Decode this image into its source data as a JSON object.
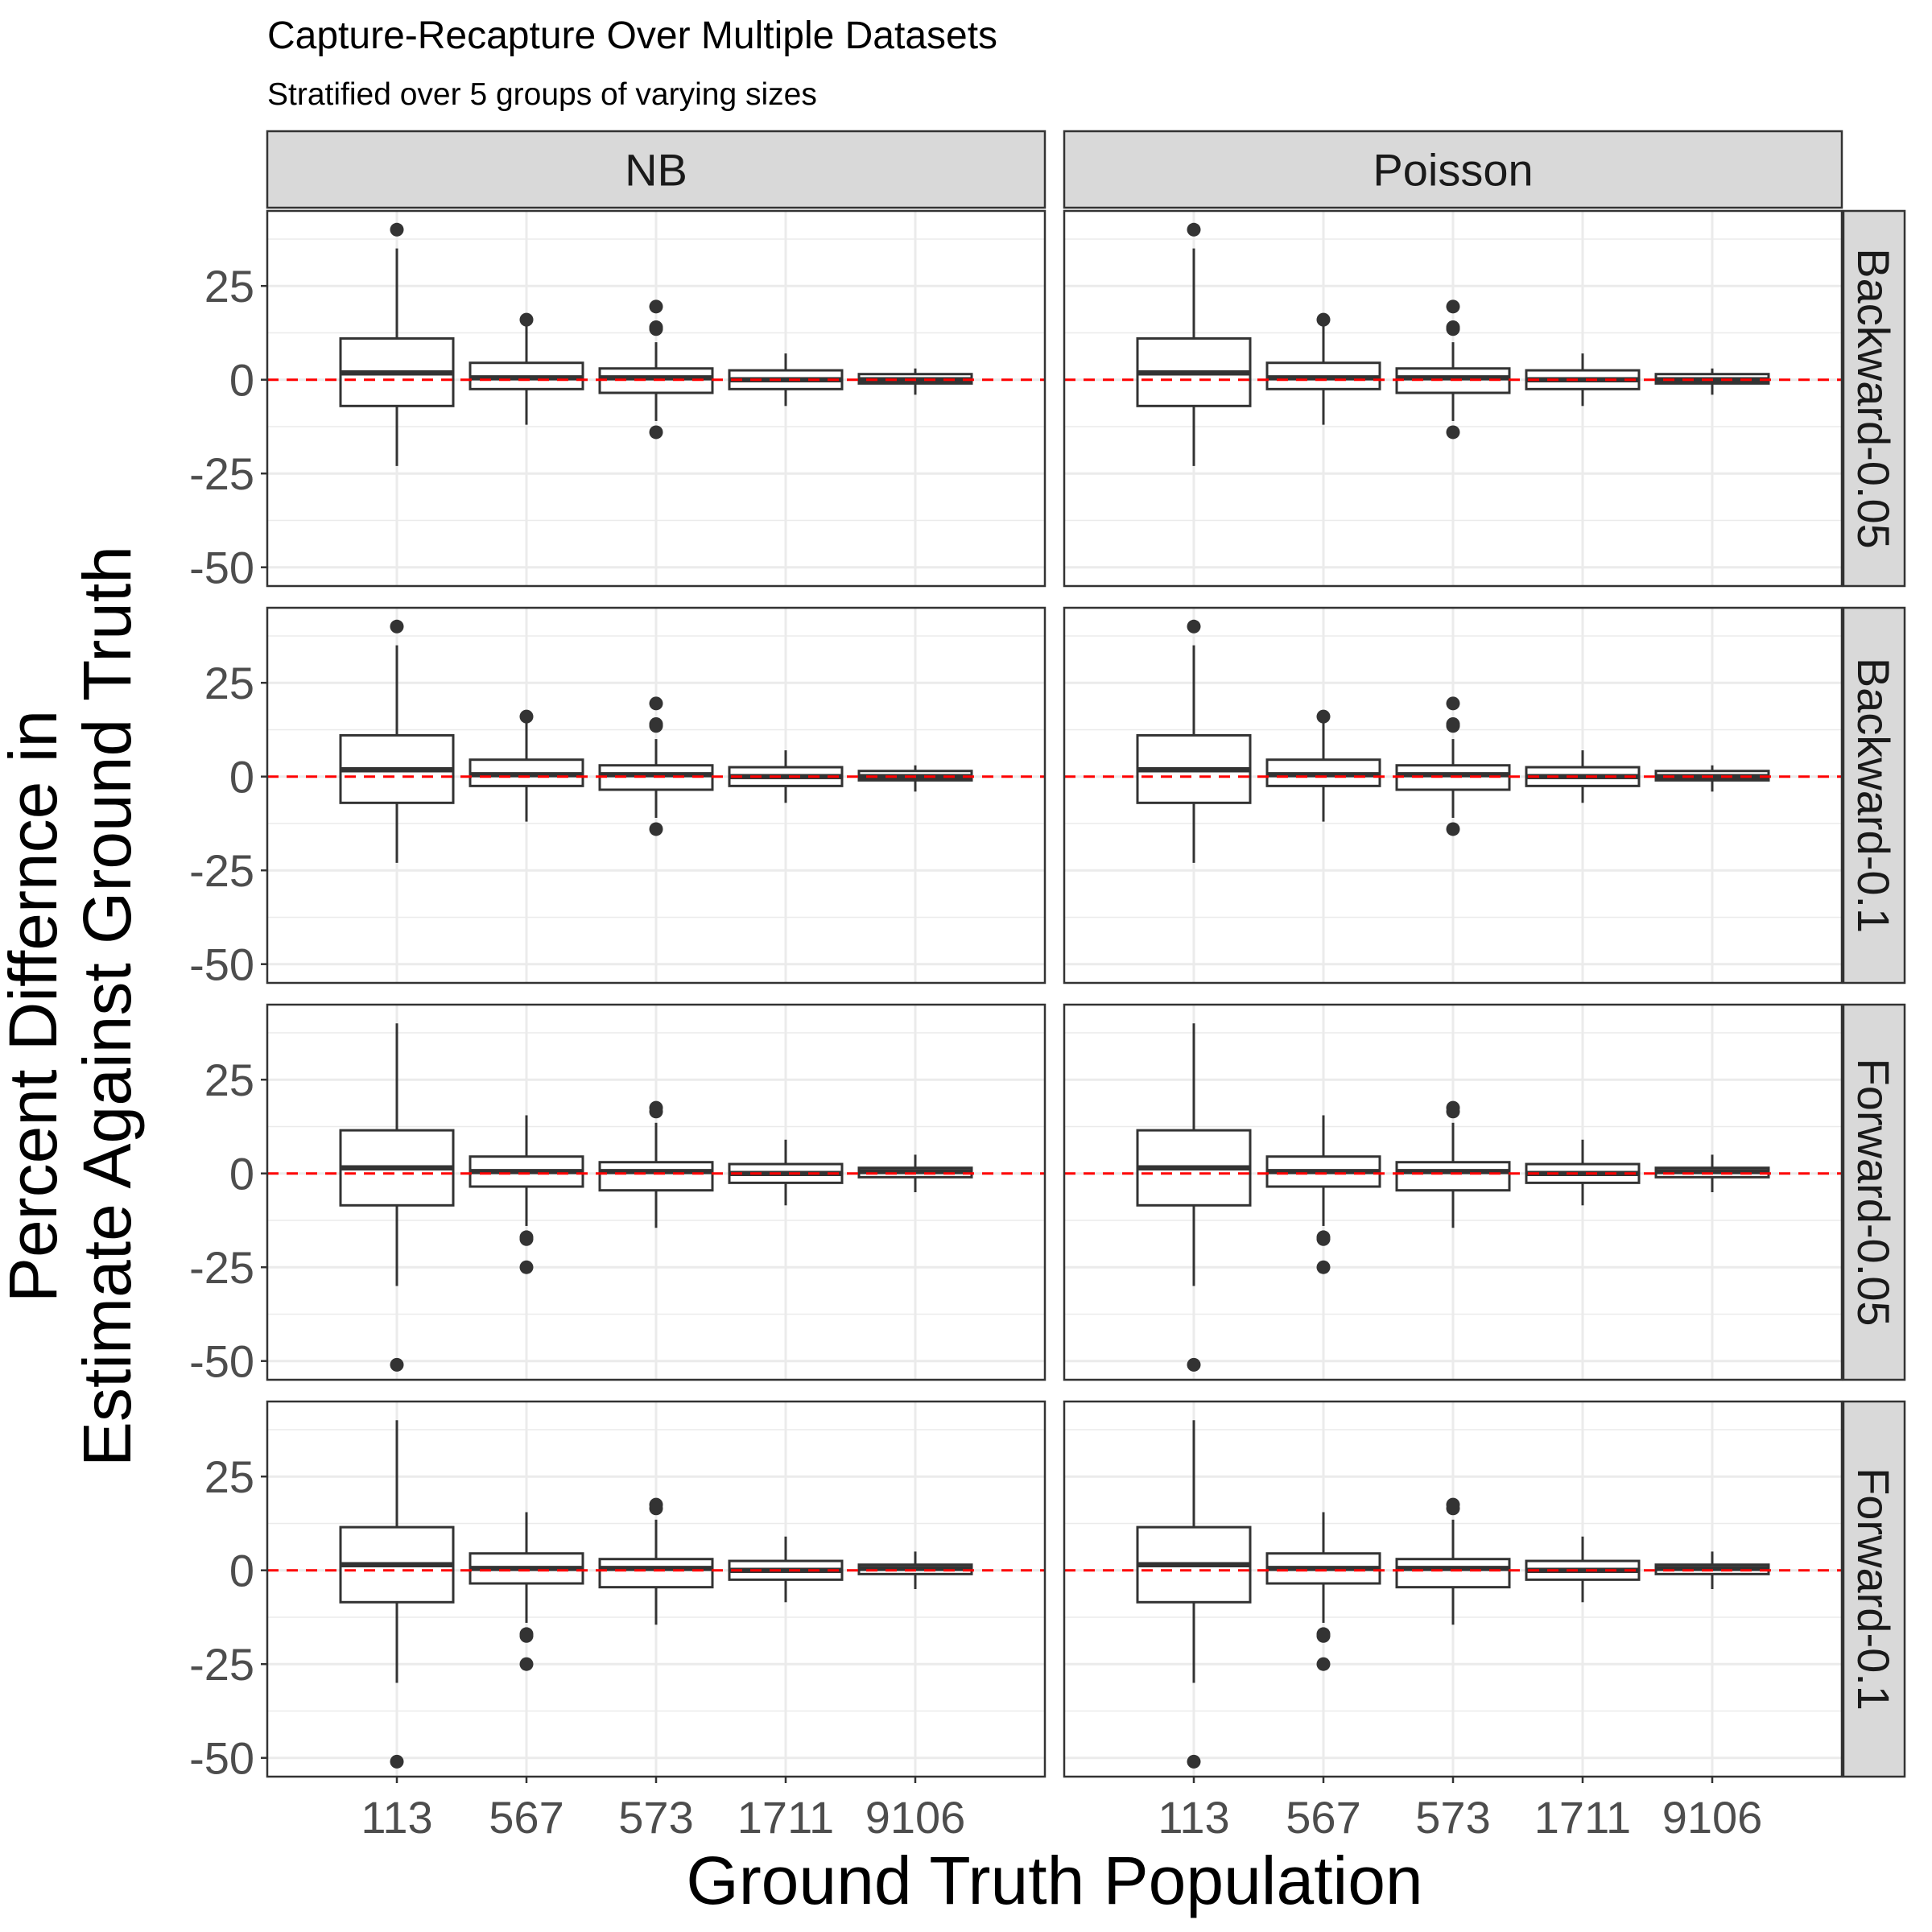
{
  "chart_data": {
    "type": "boxplot",
    "title": "Capture-Recapture Over Multiple Datasets",
    "subtitle": "Stratified over 5 groups of varying sizes",
    "xlabel": "Ground Truth Population",
    "ylabel_lines": [
      "Percent Differnce in",
      "Estimate Against Ground Truth"
    ],
    "categories": [
      "113",
      "567",
      "573",
      "1711",
      "9106"
    ],
    "ylim": [
      -55,
      45
    ],
    "yticks": [
      -50,
      -25,
      0,
      25
    ],
    "ytick_labels": [
      "-50",
      "-25",
      "0",
      "25"
    ],
    "reference_line": {
      "y": 0,
      "color": "#ff0000",
      "style": "dashed"
    },
    "facet_columns": [
      "NB",
      "Poisson"
    ],
    "facet_rows": [
      "Backward-0.05",
      "Backward-0.1",
      "Forward-0.05",
      "Forward-0.1"
    ],
    "grid": true,
    "panels": [
      {
        "row": "Backward-0.05",
        "col": "NB",
        "boxes": [
          {
            "category": "113",
            "whisker_low": -23,
            "q1": -7,
            "median": 1.8,
            "q3": 11,
            "whisker_high": 35,
            "outliers": [
              40
            ]
          },
          {
            "category": "567",
            "whisker_low": -12,
            "q1": -2.5,
            "median": 0.5,
            "q3": 4.5,
            "whisker_high": 15,
            "outliers": [
              16
            ]
          },
          {
            "category": "573",
            "whisker_low": -11,
            "q1": -3.5,
            "median": 0.5,
            "q3": 3,
            "whisker_high": 10,
            "outliers": [
              13.5,
              14,
              19.5,
              -14
            ]
          },
          {
            "category": "1711",
            "whisker_low": -7,
            "q1": -2.5,
            "median": 0,
            "q3": 2.5,
            "whisker_high": 7,
            "outliers": []
          },
          {
            "category": "9106",
            "whisker_low": -4,
            "q1": -1,
            "median": 0,
            "q3": 1.5,
            "whisker_high": 3,
            "outliers": []
          }
        ]
      },
      {
        "row": "Backward-0.05",
        "col": "Poisson",
        "boxes": [
          {
            "category": "113",
            "whisker_low": -23,
            "q1": -7,
            "median": 1.8,
            "q3": 11,
            "whisker_high": 35,
            "outliers": [
              40
            ]
          },
          {
            "category": "567",
            "whisker_low": -12,
            "q1": -2.5,
            "median": 0.5,
            "q3": 4.5,
            "whisker_high": 15,
            "outliers": [
              16
            ]
          },
          {
            "category": "573",
            "whisker_low": -11,
            "q1": -3.5,
            "median": 0.5,
            "q3": 3,
            "whisker_high": 10,
            "outliers": [
              13.5,
              14,
              19.5,
              -14
            ]
          },
          {
            "category": "1711",
            "whisker_low": -7,
            "q1": -2.5,
            "median": 0,
            "q3": 2.5,
            "whisker_high": 7,
            "outliers": []
          },
          {
            "category": "9106",
            "whisker_low": -4,
            "q1": -1,
            "median": 0,
            "q3": 1.5,
            "whisker_high": 3,
            "outliers": []
          }
        ]
      },
      {
        "row": "Backward-0.1",
        "col": "NB",
        "boxes": [
          {
            "category": "113",
            "whisker_low": -23,
            "q1": -7,
            "median": 1.8,
            "q3": 11,
            "whisker_high": 35,
            "outliers": [
              40
            ]
          },
          {
            "category": "567",
            "whisker_low": -12,
            "q1": -2.5,
            "median": 0.5,
            "q3": 4.5,
            "whisker_high": 15,
            "outliers": [
              16
            ]
          },
          {
            "category": "573",
            "whisker_low": -11,
            "q1": -3.5,
            "median": 0.5,
            "q3": 3,
            "whisker_high": 10,
            "outliers": [
              13.5,
              14,
              19.5,
              -14
            ]
          },
          {
            "category": "1711",
            "whisker_low": -7,
            "q1": -2.5,
            "median": 0,
            "q3": 2.5,
            "whisker_high": 7,
            "outliers": []
          },
          {
            "category": "9106",
            "whisker_low": -4,
            "q1": -1,
            "median": 0,
            "q3": 1.5,
            "whisker_high": 3,
            "outliers": []
          }
        ]
      },
      {
        "row": "Backward-0.1",
        "col": "Poisson",
        "boxes": [
          {
            "category": "113",
            "whisker_low": -23,
            "q1": -7,
            "median": 1.8,
            "q3": 11,
            "whisker_high": 35,
            "outliers": [
              40
            ]
          },
          {
            "category": "567",
            "whisker_low": -12,
            "q1": -2.5,
            "median": 0.5,
            "q3": 4.5,
            "whisker_high": 15,
            "outliers": [
              16
            ]
          },
          {
            "category": "573",
            "whisker_low": -11,
            "q1": -3.5,
            "median": 0.5,
            "q3": 3,
            "whisker_high": 10,
            "outliers": [
              13.5,
              14,
              19.5,
              -14
            ]
          },
          {
            "category": "1711",
            "whisker_low": -7,
            "q1": -2.5,
            "median": 0,
            "q3": 2.5,
            "whisker_high": 7,
            "outliers": []
          },
          {
            "category": "9106",
            "whisker_low": -4,
            "q1": -1,
            "median": 0,
            "q3": 1.5,
            "whisker_high": 3,
            "outliers": []
          }
        ]
      },
      {
        "row": "Forward-0.05",
        "col": "NB",
        "boxes": [
          {
            "category": "113",
            "whisker_low": -30,
            "q1": -8.5,
            "median": 1.5,
            "q3": 11.5,
            "whisker_high": 40,
            "outliers": [
              -51
            ]
          },
          {
            "category": "567",
            "whisker_low": -14,
            "q1": -3.5,
            "median": 0.5,
            "q3": 4.5,
            "whisker_high": 15.5,
            "outliers": [
              -17,
              -17.5,
              -25
            ]
          },
          {
            "category": "573",
            "whisker_low": -14.5,
            "q1": -4.5,
            "median": 0.5,
            "q3": 3,
            "whisker_high": 13.5,
            "outliers": [
              16.5,
              17.5
            ]
          },
          {
            "category": "1711",
            "whisker_low": -8.5,
            "q1": -2.5,
            "median": 0,
            "q3": 2.5,
            "whisker_high": 9,
            "outliers": []
          },
          {
            "category": "9106",
            "whisker_low": -5,
            "q1": -1,
            "median": 0.5,
            "q3": 1.5,
            "whisker_high": 5,
            "outliers": []
          }
        ]
      },
      {
        "row": "Forward-0.05",
        "col": "Poisson",
        "boxes": [
          {
            "category": "113",
            "whisker_low": -30,
            "q1": -8.5,
            "median": 1.5,
            "q3": 11.5,
            "whisker_high": 40,
            "outliers": [
              -51
            ]
          },
          {
            "category": "567",
            "whisker_low": -14,
            "q1": -3.5,
            "median": 0.5,
            "q3": 4.5,
            "whisker_high": 15.5,
            "outliers": [
              -17,
              -17.5,
              -25
            ]
          },
          {
            "category": "573",
            "whisker_low": -14.5,
            "q1": -4.5,
            "median": 0.5,
            "q3": 3,
            "whisker_high": 13.5,
            "outliers": [
              16.5,
              17.5
            ]
          },
          {
            "category": "1711",
            "whisker_low": -8.5,
            "q1": -2.5,
            "median": 0,
            "q3": 2.5,
            "whisker_high": 9,
            "outliers": []
          },
          {
            "category": "9106",
            "whisker_low": -5,
            "q1": -1,
            "median": 0.5,
            "q3": 1.5,
            "whisker_high": 5,
            "outliers": []
          }
        ]
      },
      {
        "row": "Forward-0.1",
        "col": "NB",
        "boxes": [
          {
            "category": "113",
            "whisker_low": -30,
            "q1": -8.5,
            "median": 1.5,
            "q3": 11.5,
            "whisker_high": 40,
            "outliers": [
              -51
            ]
          },
          {
            "category": "567",
            "whisker_low": -14,
            "q1": -3.5,
            "median": 0.5,
            "q3": 4.5,
            "whisker_high": 15.5,
            "outliers": [
              -17,
              -17.5,
              -25
            ]
          },
          {
            "category": "573",
            "whisker_low": -14.5,
            "q1": -4.5,
            "median": 0.5,
            "q3": 3,
            "whisker_high": 13.5,
            "outliers": [
              16.5,
              17.5
            ]
          },
          {
            "category": "1711",
            "whisker_low": -8.5,
            "q1": -2.5,
            "median": 0,
            "q3": 2.5,
            "whisker_high": 9,
            "outliers": []
          },
          {
            "category": "9106",
            "whisker_low": -5,
            "q1": -1,
            "median": 0.5,
            "q3": 1.5,
            "whisker_high": 5,
            "outliers": []
          }
        ]
      },
      {
        "row": "Forward-0.1",
        "col": "Poisson",
        "boxes": [
          {
            "category": "113",
            "whisker_low": -30,
            "q1": -8.5,
            "median": 1.5,
            "q3": 11.5,
            "whisker_high": 40,
            "outliers": [
              -51
            ]
          },
          {
            "category": "567",
            "whisker_low": -14,
            "q1": -3.5,
            "median": 0.5,
            "q3": 4.5,
            "whisker_high": 15.5,
            "outliers": [
              -17,
              -17.5,
              -25
            ]
          },
          {
            "category": "573",
            "whisker_low": -14.5,
            "q1": -4.5,
            "median": 0.5,
            "q3": 3,
            "whisker_high": 13.5,
            "outliers": [
              16.5,
              17.5
            ]
          },
          {
            "category": "1711",
            "whisker_low": -8.5,
            "q1": -2.5,
            "median": 0,
            "q3": 2.5,
            "whisker_high": 9,
            "outliers": []
          },
          {
            "category": "9106",
            "whisker_low": -5,
            "q1": -1,
            "median": 0.5,
            "q3": 1.5,
            "whisker_high": 5,
            "outliers": []
          }
        ]
      }
    ]
  },
  "colors": {
    "box_stroke": "#333333",
    "outlier_fill": "#333333",
    "strip_fill": "#d9d9d9",
    "strip_stroke": "#333333",
    "panel_border": "#333333",
    "grid": "#ebebeb",
    "reference_line": "#ff0000",
    "tick_text": "#4d4d4d"
  }
}
